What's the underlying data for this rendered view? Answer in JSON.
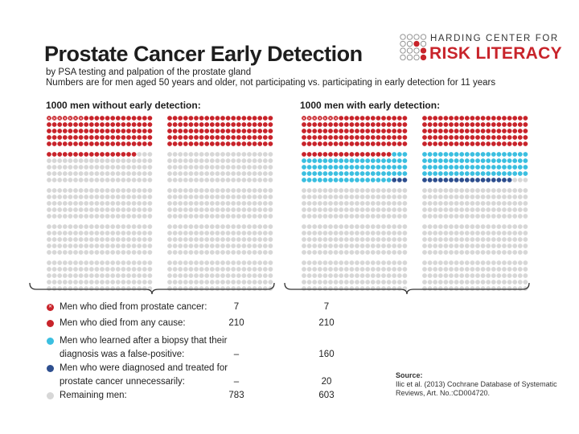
{
  "title": "Prostate Cancer Early Detection",
  "subtitle": "by PSA testing and palpation of the prostate gland",
  "subtitle2": "Numbers are for men aged 50 years and older, not participating vs. participating in early detection for 11 years",
  "logo": {
    "line1": "HARDING CENTER FOR",
    "line2": "RISK LITERACY"
  },
  "groups": {
    "without_label": "1000 men without early detection:",
    "with_label": "1000 men with early detection:"
  },
  "legend": [
    {
      "label_lines": [
        "Men who died from prostate cancer:"
      ],
      "without": "7",
      "with": "7"
    },
    {
      "label_lines": [
        "Men who died from any cause:"
      ],
      "without": "210",
      "with": "210"
    },
    {
      "label_lines": [
        "Men who learned after a biopsy that their",
        "diagnosis was a false-positive:"
      ],
      "without": "–",
      "with": "160"
    },
    {
      "label_lines": [
        "Men who were diagnosed and treated for",
        "prostate cancer unnecessarily:"
      ],
      "without": "–",
      "with": "20"
    },
    {
      "label_lines": [
        "Remaining men:"
      ],
      "without": "783",
      "with": "603"
    }
  ],
  "source": {
    "heading": "Source:",
    "line1": "Ilic et al. (2013) Cochrane Database of Systematic",
    "line2": "Reviews, Art. No.:CD004720."
  },
  "colors": {
    "prostate_death": "#c8242b",
    "any_death": "#c8242b",
    "false_positive": "#3bbfe0",
    "overtreated": "#2e4f8f",
    "remaining": "#d7d7d7"
  },
  "chart_data": {
    "type": "icon_array",
    "title": "Prostate Cancer Early Detection",
    "total_per_group": 1000,
    "categories": [
      "Men who died from prostate cancer",
      "Men who died from any cause",
      "Men who learned after a biopsy that their diagnosis was a false-positive",
      "Men who were diagnosed and treated for prostate cancer unnecessarily",
      "Remaining men"
    ],
    "series": [
      {
        "name": "1000 men without early detection",
        "values": [
          7,
          210,
          0,
          0,
          783
        ]
      },
      {
        "name": "1000 men with early detection",
        "values": [
          7,
          210,
          160,
          20,
          603
        ]
      }
    ]
  }
}
